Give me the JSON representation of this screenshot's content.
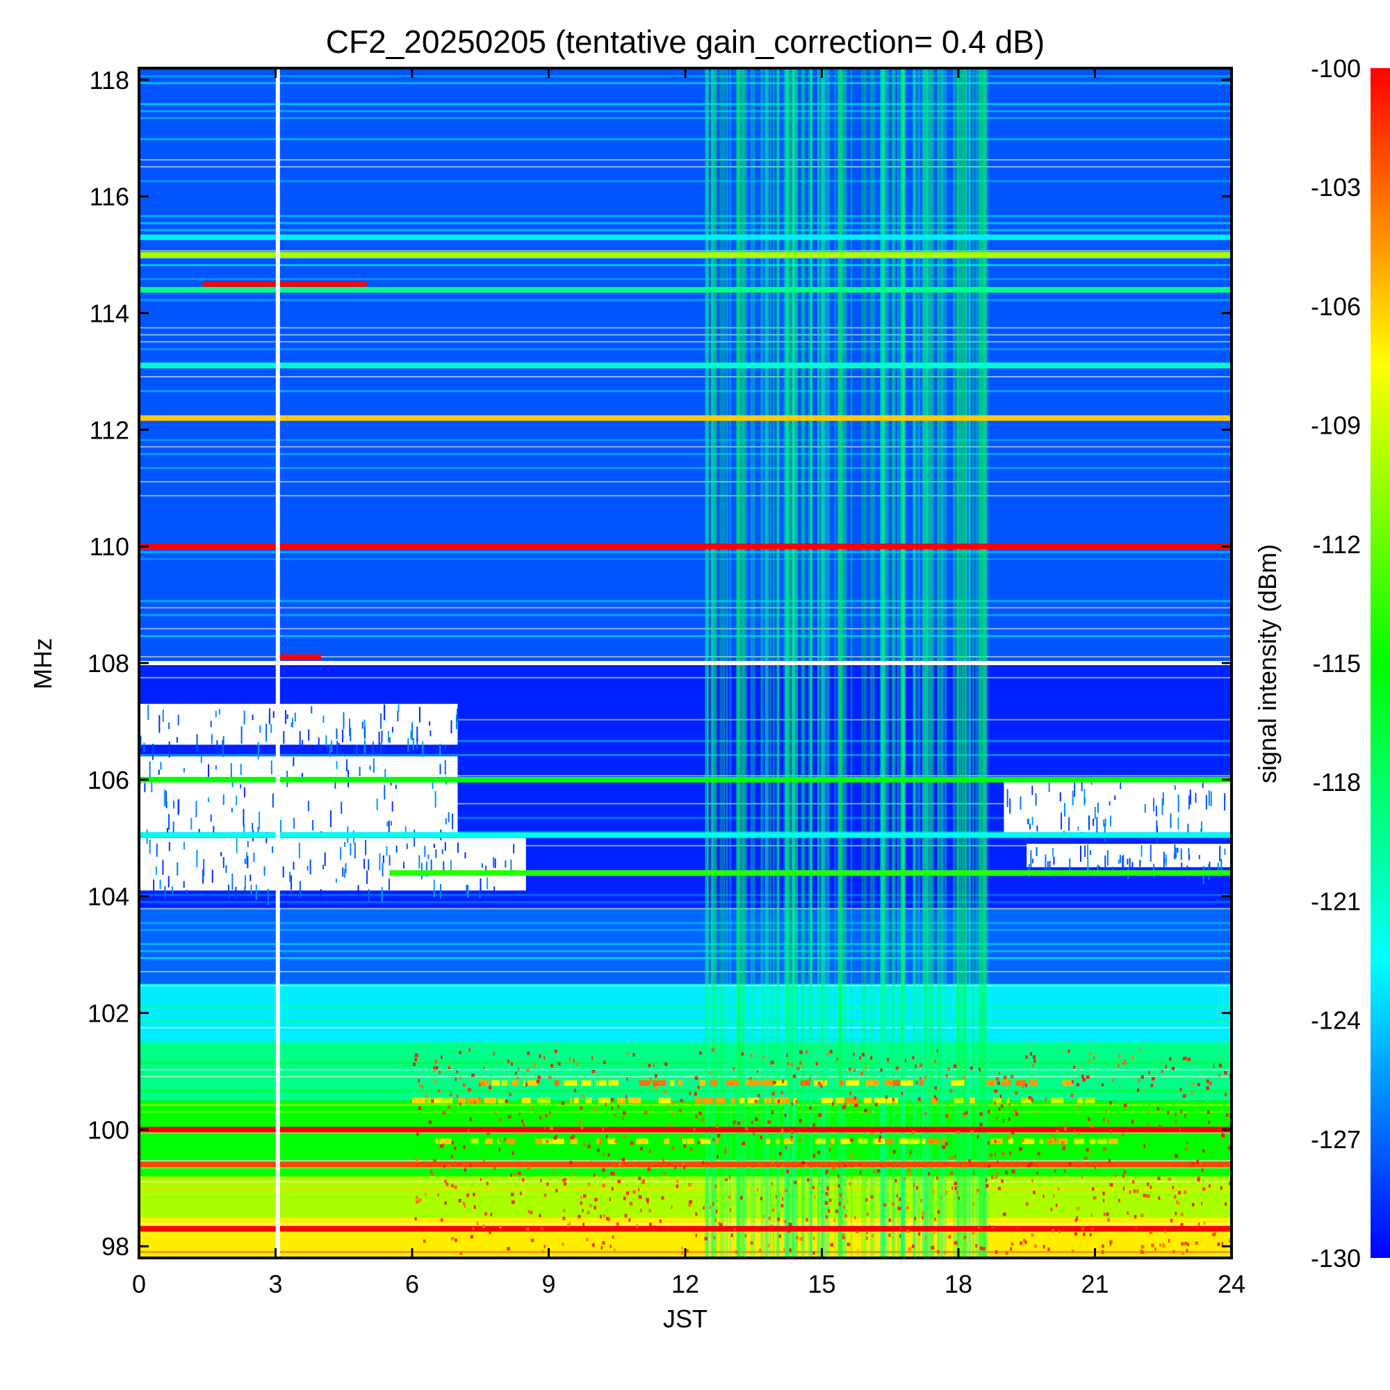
{
  "chart_data": {
    "type": "heatmap",
    "title": "CF2_20250205 (tentative gain_correction=  0.4 dB)",
    "xlabel": "JST",
    "ylabel": "MHz",
    "colorbar_label": "signal intensity (dBm)",
    "xlim": [
      0,
      24
    ],
    "ylim": [
      97.8,
      118.2
    ],
    "x_ticks": [
      "0",
      "3",
      "6",
      "9",
      "12",
      "15",
      "18",
      "21",
      "24"
    ],
    "y_ticks": [
      "98",
      "100",
      "102",
      "104",
      "106",
      "108",
      "110",
      "112",
      "114",
      "116",
      "118"
    ],
    "colorbar_ticks": [
      "-100",
      "-103",
      "-106",
      "-109",
      "-112",
      "-115",
      "-118",
      "-121",
      "-124",
      "-127",
      "-130"
    ],
    "color_range": [
      -130,
      -100
    ],
    "colormap": [
      "#0000ff",
      "#00ffff",
      "#00ff00",
      "#ffff00",
      "#ff0000"
    ],
    "data_gap_at_x": 3.05,
    "background_levels": [
      {
        "y_from": 97.8,
        "y_to": 98.5,
        "dBm": -107
      },
      {
        "y_from": 98.5,
        "y_to": 99.2,
        "dBm": -110
      },
      {
        "y_from": 99.2,
        "y_to": 100.5,
        "dBm": -115
      },
      {
        "y_from": 100.5,
        "y_to": 101.5,
        "dBm": -119
      },
      {
        "y_from": 101.5,
        "y_to": 102.5,
        "dBm": -123
      },
      {
        "y_from": 102.5,
        "y_to": 103.8,
        "dBm": -127
      },
      {
        "y_from": 103.8,
        "y_to": 108.0,
        "dBm": -129
      },
      {
        "y_from": 108.0,
        "y_to": 118.2,
        "dBm": -127.5
      }
    ],
    "strong_signals": [
      {
        "freq_mhz": 100.0,
        "x_start": 0,
        "x_end": 24,
        "dBm": -100
      },
      {
        "freq_mhz": 110.0,
        "x_start": 0,
        "x_end": 24,
        "dBm": -100
      },
      {
        "freq_mhz": 112.2,
        "x_start": 0,
        "x_end": 24,
        "dBm": -106
      },
      {
        "freq_mhz": 114.5,
        "x_start": 1.4,
        "x_end": 5.0,
        "dBm": -100
      },
      {
        "freq_mhz": 114.4,
        "x_start": 0,
        "x_end": 24,
        "dBm": -119
      },
      {
        "freq_mhz": 115.0,
        "x_start": 0,
        "x_end": 24,
        "dBm": -110
      },
      {
        "freq_mhz": 115.3,
        "x_start": 0,
        "x_end": 24,
        "dBm": -123
      },
      {
        "freq_mhz": 113.1,
        "x_start": 0,
        "x_end": 24,
        "dBm": -121
      },
      {
        "freq_mhz": 105.05,
        "x_start": 0,
        "x_end": 24,
        "dBm": -122
      },
      {
        "freq_mhz": 98.3,
        "x_start": 0,
        "x_end": 24,
        "dBm": -100
      },
      {
        "freq_mhz": 108.1,
        "x_start": 3.05,
        "x_end": 4.0,
        "dBm": -100
      },
      {
        "freq_mhz": 99.4,
        "x_start": 0,
        "x_end": 24,
        "dBm": -102
      },
      {
        "freq_mhz": 99.8,
        "x_start": 6.5,
        "x_end": 21.5,
        "dBm": -104
      },
      {
        "freq_mhz": 100.5,
        "x_start": 6.0,
        "x_end": 21.0,
        "dBm": -104
      },
      {
        "freq_mhz": 100.8,
        "x_start": 7.0,
        "x_end": 20.5,
        "dBm": -103
      },
      {
        "freq_mhz": 106.0,
        "x_start": 0,
        "x_end": 24,
        "dBm": -115
      },
      {
        "freq_mhz": 104.4,
        "x_start": 5.5,
        "x_end": 24,
        "dBm": -114
      }
    ],
    "no_data_regions": [
      {
        "y_from": 104.1,
        "y_to": 105.0,
        "x_from": 0,
        "x_to": 8.5
      },
      {
        "y_from": 105.1,
        "y_to": 106.4,
        "x_from": 0,
        "x_to": 7.0
      },
      {
        "y_from": 105.1,
        "y_to": 106.0,
        "x_from": 19.0,
        "x_to": 24
      },
      {
        "y_from": 104.5,
        "y_to": 104.9,
        "x_from": 19.5,
        "x_to": 24
      },
      {
        "y_from": 106.6,
        "y_to": 107.3,
        "x_from": 0,
        "x_to": 7.0
      }
    ],
    "elevated_activity_x_range": [
      12.4,
      18.6
    ]
  }
}
